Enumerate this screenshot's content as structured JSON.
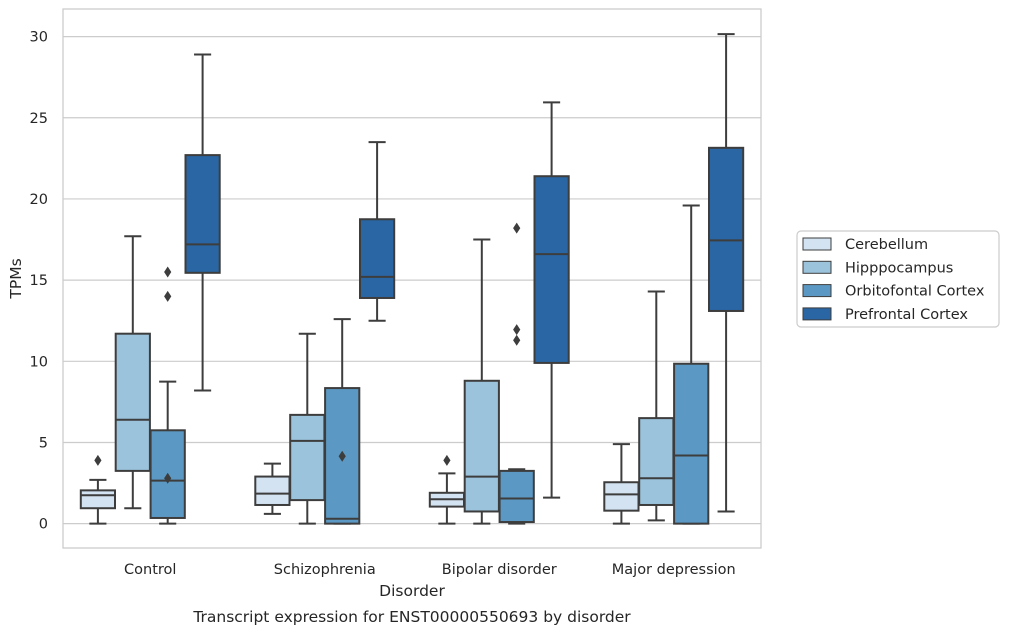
{
  "chart_data": {
    "type": "box",
    "caption": "Transcript expression for ENST00000550693 by disorder",
    "xlabel": "Disorder",
    "ylabel": "TPMs",
    "ylim": [
      -1.5,
      31.7
    ],
    "yticks": [
      0,
      5,
      10,
      15,
      20,
      25,
      30
    ],
    "grid": "horizontal",
    "legend_position": "right",
    "categories": [
      "Control",
      "Schizophrenia",
      "Bipolar disorder",
      "Major depression"
    ],
    "series": [
      {
        "name": "Cerebellum",
        "color": "#d4e3f2",
        "boxes": [
          {
            "whislo": 0.0,
            "q1": 0.95,
            "med": 1.75,
            "q3": 2.05,
            "whishi": 2.7,
            "fliers": [
              3.9
            ]
          },
          {
            "whislo": 0.6,
            "q1": 1.15,
            "med": 1.85,
            "q3": 2.9,
            "whishi": 3.7,
            "fliers": []
          },
          {
            "whislo": 0.0,
            "q1": 1.05,
            "med": 1.5,
            "q3": 1.9,
            "whishi": 3.1,
            "fliers": [
              3.9
            ]
          },
          {
            "whislo": 0.0,
            "q1": 0.8,
            "med": 1.8,
            "q3": 2.55,
            "whishi": 4.9,
            "fliers": []
          }
        ]
      },
      {
        "name": "Hipppocampus",
        "color": "#9bc3dc",
        "boxes": [
          {
            "whislo": 0.95,
            "q1": 3.25,
            "med": 6.4,
            "q3": 11.7,
            "whishi": 17.7,
            "fliers": []
          },
          {
            "whislo": 0.0,
            "q1": 1.45,
            "med": 5.1,
            "q3": 6.7,
            "whishi": 11.7,
            "fliers": []
          },
          {
            "whislo": 0.0,
            "q1": 0.75,
            "med": 2.9,
            "q3": 8.8,
            "whishi": 17.5,
            "fliers": []
          },
          {
            "whislo": 0.2,
            "q1": 1.15,
            "med": 2.8,
            "q3": 6.5,
            "whishi": 14.3,
            "fliers": []
          }
        ]
      },
      {
        "name": "Orbitofontal Cortex",
        "color": "#5b99c4",
        "boxes": [
          {
            "whislo": 0.0,
            "q1": 0.35,
            "med": 2.65,
            "q3": 5.75,
            "whishi": 8.75,
            "fliers": [
              14.0,
              15.5,
              2.8
            ]
          },
          {
            "whislo": 0.0,
            "q1": 0.0,
            "med": 0.3,
            "q3": 8.35,
            "whishi": 12.6,
            "fliers": [
              4.15
            ]
          },
          {
            "whislo": 0.0,
            "q1": 0.1,
            "med": 1.55,
            "q3": 3.25,
            "whishi": 3.35,
            "fliers": [
              11.3,
              11.95,
              18.2
            ]
          },
          {
            "whislo": 0.0,
            "q1": 0.0,
            "med": 4.2,
            "q3": 9.85,
            "whishi": 19.6,
            "fliers": []
          }
        ]
      },
      {
        "name": "Prefrontal Cortex",
        "color": "#2a66a3",
        "boxes": [
          {
            "whislo": 8.2,
            "q1": 15.45,
            "med": 17.2,
            "q3": 22.7,
            "whishi": 28.9,
            "fliers": []
          },
          {
            "whislo": 12.5,
            "q1": 13.9,
            "med": 15.2,
            "q3": 18.75,
            "whishi": 23.5,
            "fliers": []
          },
          {
            "whislo": 1.6,
            "q1": 9.9,
            "med": 16.6,
            "q3": 21.4,
            "whishi": 25.95,
            "fliers": []
          },
          {
            "whislo": 0.75,
            "q1": 13.1,
            "med": 17.45,
            "q3": 23.15,
            "whishi": 30.15,
            "fliers": []
          }
        ]
      }
    ]
  }
}
